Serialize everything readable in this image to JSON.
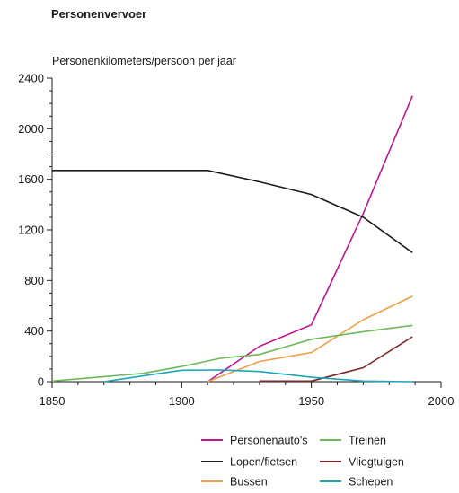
{
  "chart_data": {
    "type": "line",
    "title": "Personenvervoer",
    "ylabel": "Personenkilometers/persoon per jaar",
    "xlabel": "",
    "xlim": [
      1850,
      2000
    ],
    "ylim": [
      0,
      2400
    ],
    "x_ticks": [
      "1850",
      "1900",
      "1950",
      "2000"
    ],
    "y_ticks": [
      "0",
      "400",
      "800",
      "1200",
      "1600",
      "2000",
      "2400"
    ],
    "grid": false,
    "legend_position": "bottom-right",
    "series": [
      {
        "name": "Personenauto's",
        "color": "#c2188f",
        "points": [
          [
            1910,
            0
          ],
          [
            1930,
            280
          ],
          [
            1950,
            450
          ],
          [
            1970,
            1330
          ],
          [
            1989,
            2260
          ]
        ]
      },
      {
        "name": "Lopen/fietsen",
        "color": "#1a1a1a",
        "points": [
          [
            1850,
            1670
          ],
          [
            1910,
            1670
          ],
          [
            1930,
            1580
          ],
          [
            1950,
            1480
          ],
          [
            1970,
            1300
          ],
          [
            1989,
            1020
          ]
        ]
      },
      {
        "name": "Bussen",
        "color": "#f0a04b",
        "points": [
          [
            1910,
            0
          ],
          [
            1930,
            160
          ],
          [
            1950,
            230
          ],
          [
            1970,
            490
          ],
          [
            1989,
            675
          ]
        ]
      },
      {
        "name": "Treinen",
        "color": "#6fb85a",
        "points": [
          [
            1850,
            5
          ],
          [
            1885,
            65
          ],
          [
            1900,
            120
          ],
          [
            1915,
            185
          ],
          [
            1930,
            215
          ],
          [
            1950,
            335
          ],
          [
            1970,
            395
          ],
          [
            1989,
            445
          ]
        ]
      },
      {
        "name": "Vliegtuigen",
        "color": "#7b2a2a",
        "points": [
          [
            1930,
            5
          ],
          [
            1950,
            5
          ],
          [
            1970,
            110
          ],
          [
            1989,
            355
          ]
        ]
      },
      {
        "name": "Schepen",
        "color": "#1fa6b8",
        "points": [
          [
            1870,
            0
          ],
          [
            1900,
            90
          ],
          [
            1915,
            92
          ],
          [
            1930,
            80
          ],
          [
            1950,
            35
          ],
          [
            1970,
            5
          ],
          [
            1989,
            0
          ]
        ]
      }
    ]
  }
}
